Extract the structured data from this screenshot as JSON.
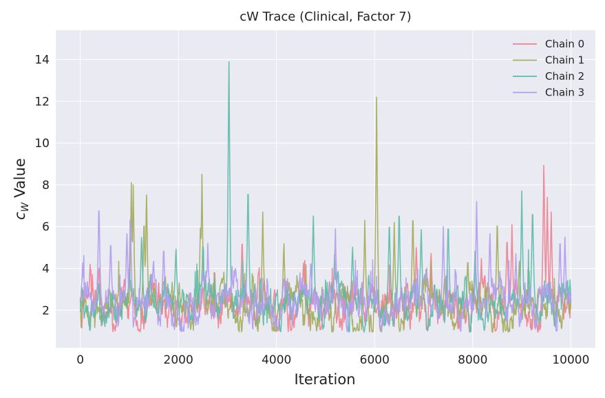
{
  "chart_data": {
    "type": "line",
    "title": "cW Trace (Clinical, Factor 7)",
    "xlabel": "Iteration",
    "ylabel_main": "c",
    "ylabel_sub": "W",
    "ylabel_rest": " Value",
    "xlim": [
      -500,
      10500
    ],
    "ylim": [
      0.2,
      15.4
    ],
    "xticks": [
      0,
      2000,
      4000,
      6000,
      8000,
      10000
    ],
    "xtick_labels": [
      "0",
      "2000",
      "4000",
      "6000",
      "8000",
      "10000"
    ],
    "yticks": [
      2,
      4,
      6,
      8,
      10,
      12,
      14
    ],
    "ytick_labels": [
      "2",
      "4",
      "6",
      "8",
      "10",
      "12",
      "14"
    ],
    "grid": true,
    "legend_position": "top-right",
    "n_points": 10001,
    "series": [
      {
        "name": "Chain 0",
        "color": "#f0808f",
        "base": 2.2,
        "spikes": [
          [
            200,
            4.2
          ],
          [
            1050,
            3.0
          ],
          [
            3300,
            5.6
          ],
          [
            4550,
            4.4
          ],
          [
            5950,
            3.3
          ],
          [
            6850,
            5.2
          ],
          [
            7150,
            4.9
          ],
          [
            8700,
            5.7
          ],
          [
            8800,
            6.1
          ],
          [
            9450,
            9.4
          ],
          [
            9520,
            7.4
          ],
          [
            9600,
            6.7
          ]
        ]
      },
      {
        "name": "Chain 1",
        "color": "#a3ab5a",
        "base": 2.1,
        "spikes": [
          [
            1040,
            8.1
          ],
          [
            1080,
            8.0
          ],
          [
            1350,
            7.9
          ],
          [
            1300,
            6.6
          ],
          [
            2450,
            6.2
          ],
          [
            2480,
            8.5
          ],
          [
            3720,
            6.7
          ],
          [
            4150,
            5.4
          ],
          [
            5800,
            6.3
          ],
          [
            6040,
            12.2
          ],
          [
            6400,
            6.2
          ],
          [
            6780,
            6.9
          ],
          [
            7900,
            4.6
          ],
          [
            8500,
            6.6
          ],
          [
            8950,
            4.5
          ]
        ]
      },
      {
        "name": "Chain 2",
        "color": "#5dbaa9",
        "base": 2.4,
        "spikes": [
          [
            1000,
            4.0
          ],
          [
            1250,
            5.7
          ],
          [
            1950,
            5.1
          ],
          [
            2500,
            5.4
          ],
          [
            3030,
            14.7
          ],
          [
            3420,
            8.3
          ],
          [
            4750,
            6.8
          ],
          [
            5550,
            5.2
          ],
          [
            6300,
            6.5
          ],
          [
            6500,
            7.1
          ],
          [
            6950,
            6.1
          ],
          [
            7500,
            6.4
          ],
          [
            8050,
            5.0
          ],
          [
            9000,
            7.7
          ],
          [
            9220,
            7.2
          ]
        ]
      },
      {
        "name": "Chain 3",
        "color": "#b09cee",
        "base": 2.3,
        "spikes": [
          [
            50,
            4.4
          ],
          [
            380,
            7.4
          ],
          [
            620,
            5.5
          ],
          [
            950,
            5.9
          ],
          [
            1020,
            6.9
          ],
          [
            1700,
            5.2
          ],
          [
            2600,
            5.2
          ],
          [
            4700,
            4.5
          ],
          [
            5200,
            5.9
          ],
          [
            7400,
            6.0
          ],
          [
            8080,
            7.2
          ],
          [
            8350,
            5.9
          ],
          [
            8880,
            4.7
          ],
          [
            9780,
            5.6
          ],
          [
            9880,
            5.5
          ]
        ]
      }
    ]
  }
}
